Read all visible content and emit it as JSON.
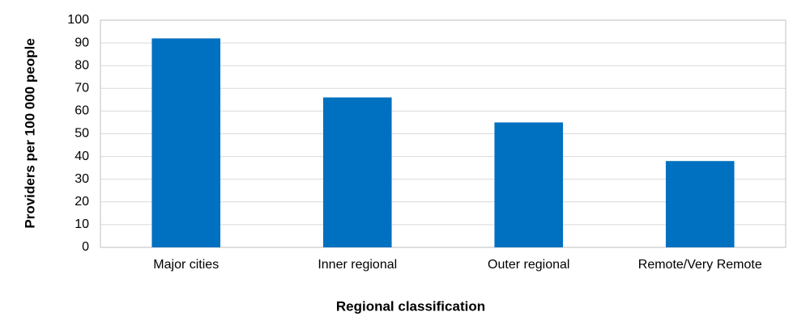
{
  "chart_data": {
    "type": "bar",
    "x_label": "Regional classification",
    "y_label": "Providers per 100 000 people",
    "categories": [
      "Major cities",
      "Inner regional",
      "Outer regional",
      "Remote/Very Remote"
    ],
    "values": [
      92,
      66,
      55,
      38
    ],
    "color": "#0070c0",
    "ylim": [
      0,
      100
    ],
    "yticks": [
      0,
      10,
      20,
      30,
      40,
      50,
      60,
      70,
      80,
      90,
      100
    ],
    "grid": true
  }
}
